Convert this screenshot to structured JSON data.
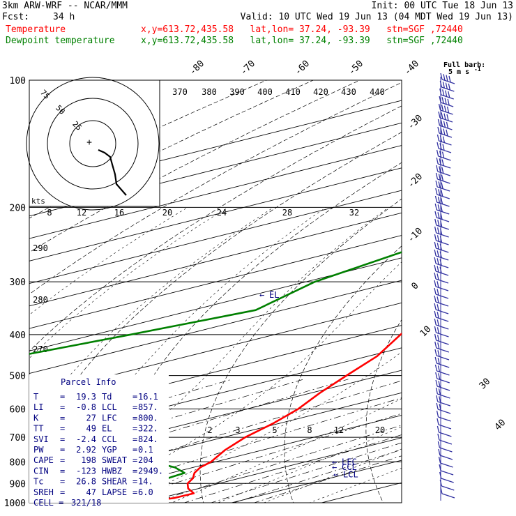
{
  "header": {
    "model": "3km ARW-WRF -- NCAR/MMM",
    "init": "Init: 00 UTC Tue 18 Jun 13",
    "fcst_label": "Fcst:",
    "fcst_value": "34 h",
    "valid": "Valid: 10 UTC Wed 19 Jun 13 (04 MDT Wed 19 Jun 13)",
    "temp_label": "Temperature",
    "dew_label": "Dewpoint temperature",
    "location": "x,y=613.72,435.58   lat,lon= 37.24, -93.39   stn=SGF ,72440"
  },
  "colors": {
    "temperature": "#ff0000",
    "dewpoint": "#008000",
    "barb": "#3030a0",
    "panel_text": "#000080"
  },
  "chart_data": {
    "type": "line",
    "subtype": "skew-T log-p sounding",
    "yscale": "log",
    "ylim": [
      1000,
      100
    ],
    "pressure_labels": [
      "100",
      "200",
      "300",
      "400",
      "500",
      "600",
      "700",
      "800",
      "900",
      "1000"
    ],
    "pressure_levels": [
      100,
      200,
      300,
      400,
      500,
      600,
      700,
      800,
      900,
      1000
    ],
    "top_temp_labels": [
      "-80",
      "-70",
      "-60",
      "-50",
      "-40"
    ],
    "right_temp_labels": [
      "-30",
      "-20",
      "-10",
      "0",
      "10",
      "30",
      "40"
    ],
    "theta_e_labels": [
      "370",
      "380",
      "390",
      "400",
      "410",
      "420",
      "430",
      "440"
    ],
    "theta_labels": [
      "290",
      "280",
      "270"
    ],
    "mixing_ratio_top_labels": [
      "8",
      "12",
      "16",
      "20",
      "24",
      "28",
      "32"
    ],
    "mixing_ratio_low_labels": [
      "2",
      "3",
      "5",
      "8",
      "12",
      "20"
    ],
    "series": [
      {
        "name": "Temperature",
        "p": [
          1000,
          975,
          950,
          925,
          900,
          875,
          850,
          825,
          800,
          750,
          700,
          650,
          600,
          550,
          500,
          450,
          400,
          350,
          300,
          250,
          200,
          150,
          125,
          100
        ],
        "t_c": [
          19.3,
          21.5,
          21.6,
          18.8,
          16.5,
          14.8,
          12.6,
          10.8,
          9.5,
          5.8,
          2.4,
          -0.6,
          -4.3,
          -9.0,
          -13.8,
          -19.0,
          -26.0,
          -33.5,
          -42.0,
          -52.5,
          -62.0,
          -61.0,
          -59.0,
          -58.5
        ]
      },
      {
        "name": "Dewpoint temperature",
        "p": [
          1000,
          975,
          950,
          925,
          900,
          875,
          850,
          825,
          800,
          750,
          700,
          650,
          600,
          550,
          500,
          450,
          400,
          350,
          300,
          250,
          200,
          150,
          125,
          100
        ],
        "t_c": [
          16.1,
          16.2,
          15.5,
          14.8,
          13.5,
          12.0,
          11.5,
          8.0,
          3.0,
          -7.0,
          -17.0,
          -30.0,
          -50.0,
          -65.0,
          -71.0,
          -59.0,
          -56.0,
          -53.0,
          -59.0,
          -63.0,
          -72.0,
          -81.0,
          -84.0,
          -85.0
        ]
      }
    ],
    "annotations": [
      {
        "label": "EL",
        "p": 322
      },
      {
        "label": "LFC",
        "p": 800
      },
      {
        "label": "CCL",
        "p": 824
      },
      {
        "label": "LCL",
        "p": 857
      }
    ]
  },
  "parcel": {
    "title": "Parcel Info",
    "rows": [
      {
        "l": "T",
        "lv": "19.3",
        "r": "Td",
        "rv": "16.1"
      },
      {
        "l": "LI",
        "lv": "-0.8",
        "r": "LCL",
        "rv": "857."
      },
      {
        "l": "K",
        "lv": "27",
        "r": "LFC",
        "rv": "800."
      },
      {
        "l": "TT",
        "lv": "49",
        "r": "EL",
        "rv": "322."
      },
      {
        "l": "SVI",
        "lv": "-2.4",
        "r": "CCL",
        "rv": "824."
      },
      {
        "l": "PW",
        "lv": "2.92",
        "r": "YGP",
        "rv": "0.1"
      },
      {
        "l": "CAPE",
        "lv": "198",
        "r": "SWEAT",
        "rv": "204"
      },
      {
        "l": "CIN",
        "lv": "-123",
        "r": "HWBZ",
        "rv": "2949."
      },
      {
        "l": "Tc",
        "lv": "26.8",
        "r": "SHEAR",
        "rv": "14."
      },
      {
        "l": "SREH",
        "lv": "47",
        "r": "LAPSE",
        "rv": "6.0"
      }
    ],
    "cell_label": "CELL =",
    "cell_value": "321/18"
  },
  "hodograph": {
    "ring_labels": [
      "75",
      "50",
      "25"
    ],
    "units": "kts"
  },
  "barb_legend": {
    "line1": "Full barb:",
    "line2": "5 m s",
    "sup": "-1"
  }
}
